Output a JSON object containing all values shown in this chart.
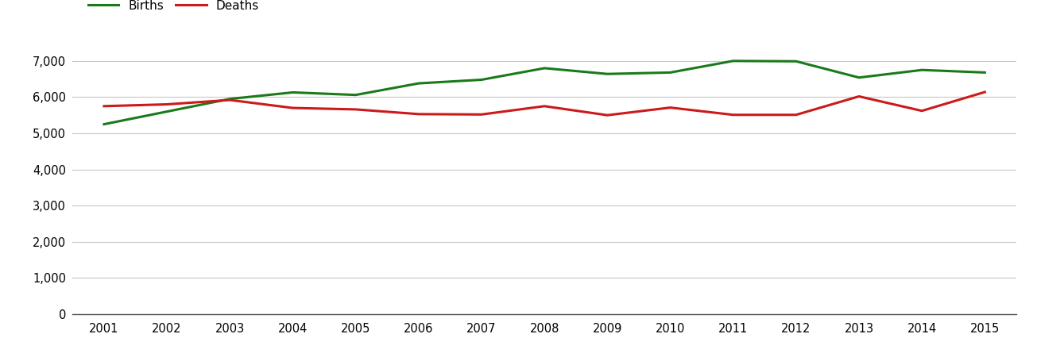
{
  "years": [
    2001,
    2002,
    2003,
    2004,
    2005,
    2006,
    2007,
    2008,
    2009,
    2010,
    2011,
    2012,
    2013,
    2014,
    2015
  ],
  "births": [
    5250,
    5600,
    5950,
    6130,
    6060,
    6380,
    6480,
    6800,
    6640,
    6680,
    7000,
    6990,
    6540,
    6750,
    6680
  ],
  "deaths": [
    5750,
    5800,
    5920,
    5700,
    5660,
    5530,
    5520,
    5750,
    5500,
    5710,
    5510,
    5510,
    6020,
    5620,
    6140
  ],
  "births_color": "#1a7a1a",
  "deaths_color": "#cc1a1a",
  "background_color": "#ffffff",
  "grid_color": "#c8c8c8",
  "ylim": [
    0,
    7500
  ],
  "yticks": [
    0,
    1000,
    2000,
    3000,
    4000,
    5000,
    6000,
    7000
  ],
  "legend_labels": [
    "Births",
    "Deaths"
  ],
  "line_width": 2.2
}
